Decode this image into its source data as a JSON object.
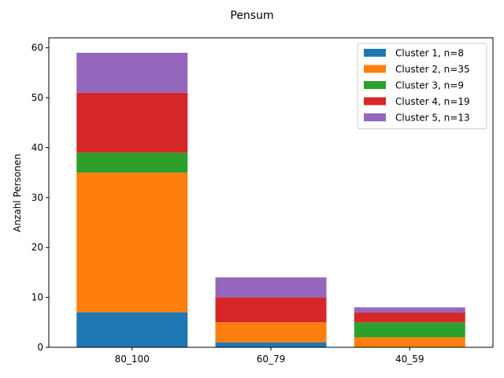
{
  "chart_data": {
    "type": "bar",
    "stacked": true,
    "title": "Pensum",
    "xlabel": "",
    "ylabel": "Anzahl Personen",
    "categories": [
      "80_100",
      "60_79",
      "40_59"
    ],
    "ylim": [
      0,
      62
    ],
    "yticks": [
      0,
      10,
      20,
      30,
      40,
      50,
      60
    ],
    "grid": false,
    "legend_position": "top-right",
    "series": [
      {
        "name": "Cluster 1, n=8",
        "color": "#1f77b4",
        "values": [
          7,
          1,
          0
        ]
      },
      {
        "name": "Cluster 2, n=35",
        "color": "#ff7f0e",
        "values": [
          28,
          4,
          2
        ]
      },
      {
        "name": "Cluster 3, n=9",
        "color": "#2ca02c",
        "values": [
          4,
          0,
          3
        ]
      },
      {
        "name": "Cluster 4, n=19",
        "color": "#d62728",
        "values": [
          12,
          5,
          2
        ]
      },
      {
        "name": "Cluster 5, n=13",
        "color": "#9467bd",
        "values": [
          8,
          4,
          1
        ]
      }
    ]
  }
}
